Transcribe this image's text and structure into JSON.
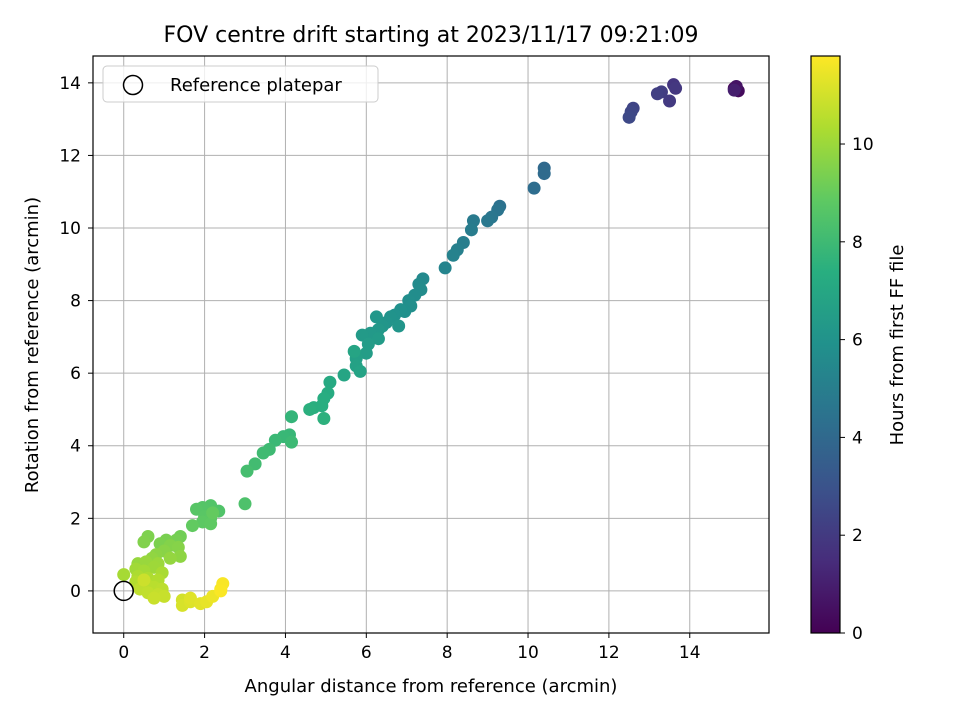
{
  "chart_data": {
    "type": "scatter",
    "title": "FOV centre drift starting at 2023/11/17 09:21:09",
    "xlabel": "Angular distance from reference (arcmin)",
    "ylabel": "Rotation from reference (arcmin)",
    "xlim": [
      -0.76,
      15.96
    ],
    "ylim": [
      -1.16,
      14.74
    ],
    "xticks": [
      0,
      2,
      4,
      6,
      8,
      10,
      12,
      14
    ],
    "yticks": [
      0,
      2,
      4,
      6,
      8,
      10,
      12,
      14
    ],
    "grid": true,
    "legend": {
      "placement": "top-left",
      "entries": [
        {
          "label": "Reference platepar",
          "marker": "open-circle"
        }
      ]
    },
    "reference_point": {
      "x": 0,
      "y": 0
    },
    "colorbar": {
      "label": "Hours from first FF file",
      "range": [
        0,
        11.8
      ],
      "ticks": [
        0,
        2,
        4,
        6,
        8,
        10
      ],
      "colormap": "viridis"
    },
    "points": [
      {
        "x": 15.1,
        "y": 13.85,
        "c": 0.0
      },
      {
        "x": 15.2,
        "y": 13.78,
        "c": 0.3
      },
      {
        "x": 15.15,
        "y": 13.9,
        "c": 0.6
      },
      {
        "x": 15.1,
        "y": 13.8,
        "c": 1.0
      },
      {
        "x": 13.6,
        "y": 13.95,
        "c": 1.8
      },
      {
        "x": 13.65,
        "y": 13.85,
        "c": 1.9
      },
      {
        "x": 13.5,
        "y": 13.5,
        "c": 2.0
      },
      {
        "x": 13.3,
        "y": 13.75,
        "c": 2.1
      },
      {
        "x": 13.2,
        "y": 13.7,
        "c": 2.2
      },
      {
        "x": 12.6,
        "y": 13.3,
        "c": 2.4
      },
      {
        "x": 12.55,
        "y": 13.2,
        "c": 2.5
      },
      {
        "x": 12.5,
        "y": 13.05,
        "c": 2.6
      },
      {
        "x": 10.4,
        "y": 11.65,
        "c": 4.0
      },
      {
        "x": 10.4,
        "y": 11.5,
        "c": 4.1
      },
      {
        "x": 10.15,
        "y": 11.1,
        "c": 4.2
      },
      {
        "x": 9.3,
        "y": 10.6,
        "c": 4.4
      },
      {
        "x": 9.25,
        "y": 10.5,
        "c": 4.5
      },
      {
        "x": 9.1,
        "y": 10.3,
        "c": 4.6
      },
      {
        "x": 9.0,
        "y": 10.2,
        "c": 4.7
      },
      {
        "x": 8.65,
        "y": 10.2,
        "c": 4.8
      },
      {
        "x": 8.6,
        "y": 9.95,
        "c": 4.9
      },
      {
        "x": 8.4,
        "y": 9.6,
        "c": 5.0
      },
      {
        "x": 8.25,
        "y": 9.4,
        "c": 5.1
      },
      {
        "x": 8.15,
        "y": 9.25,
        "c": 5.2
      },
      {
        "x": 7.95,
        "y": 8.9,
        "c": 5.3
      },
      {
        "x": 7.4,
        "y": 8.6,
        "c": 5.5
      },
      {
        "x": 7.3,
        "y": 8.45,
        "c": 5.6
      },
      {
        "x": 7.35,
        "y": 8.3,
        "c": 5.65
      },
      {
        "x": 7.2,
        "y": 8.15,
        "c": 5.7
      },
      {
        "x": 7.05,
        "y": 8.0,
        "c": 5.75
      },
      {
        "x": 7.1,
        "y": 7.85,
        "c": 5.8
      },
      {
        "x": 6.95,
        "y": 7.7,
        "c": 5.85
      },
      {
        "x": 6.85,
        "y": 7.75,
        "c": 5.9
      },
      {
        "x": 6.7,
        "y": 7.6,
        "c": 5.95
      },
      {
        "x": 6.6,
        "y": 7.55,
        "c": 6.0
      },
      {
        "x": 6.5,
        "y": 7.4,
        "c": 6.05
      },
      {
        "x": 6.8,
        "y": 7.3,
        "c": 6.1
      },
      {
        "x": 6.4,
        "y": 7.3,
        "c": 6.15
      },
      {
        "x": 6.25,
        "y": 7.55,
        "c": 6.2
      },
      {
        "x": 6.3,
        "y": 7.2,
        "c": 6.25
      },
      {
        "x": 6.1,
        "y": 7.1,
        "c": 6.3
      },
      {
        "x": 5.9,
        "y": 7.05,
        "c": 6.35
      },
      {
        "x": 6.3,
        "y": 6.95,
        "c": 6.4
      },
      {
        "x": 6.05,
        "y": 6.8,
        "c": 6.45
      },
      {
        "x": 6.0,
        "y": 6.55,
        "c": 6.5
      },
      {
        "x": 5.75,
        "y": 6.4,
        "c": 6.6
      },
      {
        "x": 5.75,
        "y": 6.2,
        "c": 6.7
      },
      {
        "x": 5.85,
        "y": 6.05,
        "c": 6.8
      },
      {
        "x": 5.7,
        "y": 6.6,
        "c": 6.85
      },
      {
        "x": 5.45,
        "y": 5.95,
        "c": 6.9
      },
      {
        "x": 5.1,
        "y": 5.75,
        "c": 7.1
      },
      {
        "x": 5.05,
        "y": 5.45,
        "c": 7.2
      },
      {
        "x": 4.95,
        "y": 5.3,
        "c": 7.3
      },
      {
        "x": 4.9,
        "y": 5.1,
        "c": 7.35
      },
      {
        "x": 4.7,
        "y": 5.05,
        "c": 7.4
      },
      {
        "x": 4.6,
        "y": 5.0,
        "c": 7.45
      },
      {
        "x": 4.95,
        "y": 4.75,
        "c": 7.5
      },
      {
        "x": 4.15,
        "y": 4.8,
        "c": 7.7
      },
      {
        "x": 4.1,
        "y": 4.3,
        "c": 7.8
      },
      {
        "x": 3.95,
        "y": 4.25,
        "c": 7.85
      },
      {
        "x": 3.75,
        "y": 4.15,
        "c": 7.9
      },
      {
        "x": 4.15,
        "y": 4.1,
        "c": 7.95
      },
      {
        "x": 3.6,
        "y": 3.9,
        "c": 8.0
      },
      {
        "x": 3.45,
        "y": 3.8,
        "c": 8.05
      },
      {
        "x": 3.25,
        "y": 3.5,
        "c": 8.1
      },
      {
        "x": 3.05,
        "y": 3.3,
        "c": 8.2
      },
      {
        "x": 3.0,
        "y": 2.4,
        "c": 8.4
      },
      {
        "x": 2.35,
        "y": 2.2,
        "c": 8.5
      },
      {
        "x": 2.15,
        "y": 2.35,
        "c": 8.55
      },
      {
        "x": 1.95,
        "y": 2.3,
        "c": 8.6
      },
      {
        "x": 1.8,
        "y": 2.25,
        "c": 8.65
      },
      {
        "x": 2.0,
        "y": 2.05,
        "c": 8.7
      },
      {
        "x": 2.15,
        "y": 2.0,
        "c": 8.75
      },
      {
        "x": 1.95,
        "y": 1.9,
        "c": 8.8
      },
      {
        "x": 2.15,
        "y": 1.85,
        "c": 8.85
      },
      {
        "x": 1.7,
        "y": 1.8,
        "c": 8.9
      },
      {
        "x": 2.2,
        "y": 2.15,
        "c": 8.95
      },
      {
        "x": 1.4,
        "y": 1.5,
        "c": 9.2
      },
      {
        "x": 1.3,
        "y": 1.4,
        "c": 9.3
      },
      {
        "x": 1.05,
        "y": 1.4,
        "c": 9.35
      },
      {
        "x": 0.9,
        "y": 1.3,
        "c": 9.4
      },
      {
        "x": 0.6,
        "y": 1.5,
        "c": 9.45
      },
      {
        "x": 0.5,
        "y": 1.35,
        "c": 9.5
      },
      {
        "x": 1.15,
        "y": 1.25,
        "c": 9.55
      },
      {
        "x": 1.35,
        "y": 1.2,
        "c": 9.6
      },
      {
        "x": 1.0,
        "y": 1.1,
        "c": 9.65
      },
      {
        "x": 0.8,
        "y": 1.0,
        "c": 9.7
      },
      {
        "x": 1.4,
        "y": 0.95,
        "c": 9.75
      },
      {
        "x": 0.7,
        "y": 0.9,
        "c": 9.8
      },
      {
        "x": 1.15,
        "y": 0.9,
        "c": 9.85
      },
      {
        "x": 0.35,
        "y": 0.75,
        "c": 9.9
      },
      {
        "x": 0.55,
        "y": 0.8,
        "c": 9.95
      },
      {
        "x": 0.85,
        "y": 0.75,
        "c": 10.0
      },
      {
        "x": 0.75,
        "y": 0.65,
        "c": 10.05
      },
      {
        "x": 0.3,
        "y": 0.6,
        "c": 10.1
      },
      {
        "x": 0.5,
        "y": 0.55,
        "c": 10.15
      },
      {
        "x": 0.0,
        "y": 0.45,
        "c": 10.2
      },
      {
        "x": 0.95,
        "y": 0.5,
        "c": 10.25
      },
      {
        "x": 0.35,
        "y": 0.4,
        "c": 10.3
      },
      {
        "x": 0.6,
        "y": 0.35,
        "c": 10.35
      },
      {
        "x": 0.85,
        "y": 0.3,
        "c": 10.4
      },
      {
        "x": 0.3,
        "y": 0.25,
        "c": 10.45
      },
      {
        "x": 0.55,
        "y": 0.2,
        "c": 10.5
      },
      {
        "x": 0.75,
        "y": 0.1,
        "c": 10.55
      },
      {
        "x": 0.95,
        "y": 0.05,
        "c": 10.6
      },
      {
        "x": 0.4,
        "y": 0.05,
        "c": 10.65
      },
      {
        "x": 0.6,
        "y": -0.05,
        "c": 10.7
      },
      {
        "x": 0.85,
        "y": -0.1,
        "c": 10.75
      },
      {
        "x": 1.0,
        "y": -0.15,
        "c": 10.8
      },
      {
        "x": 0.75,
        "y": -0.2,
        "c": 10.85
      },
      {
        "x": 0.5,
        "y": 0.3,
        "c": 10.9
      },
      {
        "x": 1.45,
        "y": -0.25,
        "c": 11.0
      },
      {
        "x": 1.45,
        "y": -0.4,
        "c": 11.1
      },
      {
        "x": 1.65,
        "y": -0.3,
        "c": 11.2
      },
      {
        "x": 1.65,
        "y": -0.2,
        "c": 11.25
      },
      {
        "x": 1.9,
        "y": -0.35,
        "c": 11.3
      },
      {
        "x": 2.05,
        "y": -0.3,
        "c": 11.4
      },
      {
        "x": 2.2,
        "y": -0.15,
        "c": 11.5
      },
      {
        "x": 2.4,
        "y": 0.05,
        "c": 11.6
      },
      {
        "x": 2.45,
        "y": 0.2,
        "c": 11.7
      },
      {
        "x": 2.4,
        "y": 0.0,
        "c": 11.75
      }
    ]
  }
}
